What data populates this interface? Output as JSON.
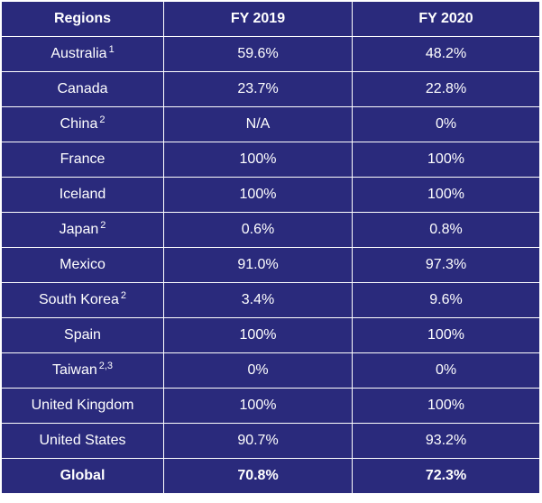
{
  "table": {
    "headers": [
      "Regions",
      "FY 2019",
      "FY 2020"
    ],
    "rows": [
      {
        "region": "Australia",
        "note": "1",
        "fy2019": "59.6%",
        "fy2020": "48.2%"
      },
      {
        "region": "Canada",
        "note": "",
        "fy2019": "23.7%",
        "fy2020": "22.8%"
      },
      {
        "region": "China",
        "note": "2",
        "fy2019": "N/A",
        "fy2020": "0%"
      },
      {
        "region": "France",
        "note": "",
        "fy2019": "100%",
        "fy2020": "100%"
      },
      {
        "region": "Iceland",
        "note": "",
        "fy2019": "100%",
        "fy2020": "100%"
      },
      {
        "region": "Japan",
        "note": "2",
        "fy2019": "0.6%",
        "fy2020": "0.8%"
      },
      {
        "region": "Mexico",
        "note": "",
        "fy2019": "91.0%",
        "fy2020": "97.3%"
      },
      {
        "region": "South Korea",
        "note": "2",
        "fy2019": "3.4%",
        "fy2020": "9.6%"
      },
      {
        "region": "Spain",
        "note": "",
        "fy2019": "100%",
        "fy2020": "100%"
      },
      {
        "region": "Taiwan",
        "note": "2,3",
        "fy2019": "0%",
        "fy2020": "0%"
      },
      {
        "region": "United Kingdom",
        "note": "",
        "fy2019": "100%",
        "fy2020": "100%"
      },
      {
        "region": "United States",
        "note": "",
        "fy2019": "90.7%",
        "fy2020": "93.2%"
      }
    ],
    "total": {
      "region": "Global",
      "fy2019": "70.8%",
      "fy2020": "72.3%"
    }
  },
  "colors": {
    "background": "#2a2a7c",
    "text": "#ffffff",
    "grid": "#ffffff"
  }
}
